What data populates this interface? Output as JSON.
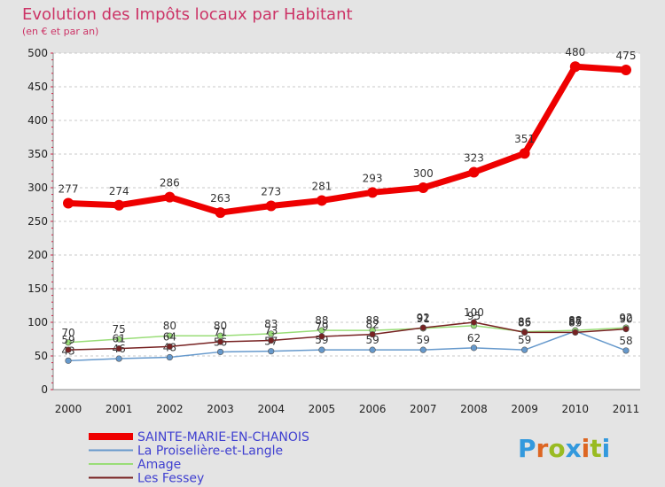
{
  "chart_data": {
    "type": "line",
    "title": "Evolution des Impôts locaux par Habitant",
    "subtitle": "(en € et par an)",
    "categories": [
      "2000",
      "2001",
      "2002",
      "2003",
      "2004",
      "2005",
      "2006",
      "2007",
      "2008",
      "2009",
      "2010",
      "2011"
    ],
    "y_ticks": [
      "0",
      "50",
      "100",
      "150",
      "200",
      "250",
      "300",
      "350",
      "400",
      "450",
      "500"
    ],
    "ylim": [
      0,
      500
    ],
    "grid": true,
    "legend_position": "bottom-left",
    "series": [
      {
        "name": "SAINTE-MARIE-EN-CHANOIS",
        "color": "#ee0000",
        "values": [
          277,
          274,
          286,
          263,
          273,
          281,
          293,
          300,
          323,
          351,
          480,
          475
        ],
        "labels": [
          "277",
          "274",
          "286",
          "263",
          "273",
          "281",
          "293",
          "300",
          "323",
          "351",
          "480",
          "475"
        ]
      },
      {
        "name": "La Proiselière-et-Langle",
        "color": "#6699cc",
        "values": [
          43,
          46,
          48,
          56,
          57,
          59,
          59,
          59,
          62,
          59,
          87,
          58
        ],
        "labels": [
          "43",
          "46",
          "48",
          "56",
          "57",
          "59",
          "59",
          "59",
          "62",
          "59",
          "87",
          "58"
        ]
      },
      {
        "name": "Amage",
        "color": "#99dd77",
        "values": [
          70,
          75,
          80,
          80,
          83,
          88,
          88,
          91,
          95,
          86,
          88,
          92
        ],
        "labels": [
          "70",
          "75",
          "80",
          "80",
          "83",
          "88",
          "88",
          "91",
          "95",
          "86",
          "88",
          "92"
        ]
      },
      {
        "name": "Les Fessey",
        "color": "#772222",
        "values": [
          59,
          61,
          64,
          71,
          73,
          79,
          82,
          92,
          100,
          85,
          85,
          90
        ],
        "labels": [
          "59",
          "61",
          "64",
          "71",
          "73",
          "79",
          "82",
          "92",
          "100",
          "85",
          "85",
          "90"
        ]
      }
    ]
  },
  "logo": {
    "letters": [
      "P",
      "r",
      "o",
      "x",
      "i",
      "t",
      "i"
    ],
    "colors": [
      "#3399dd",
      "#dd6622",
      "#99bb22",
      "#3399dd",
      "#dd6622",
      "#99bb22",
      "#3399dd"
    ]
  }
}
